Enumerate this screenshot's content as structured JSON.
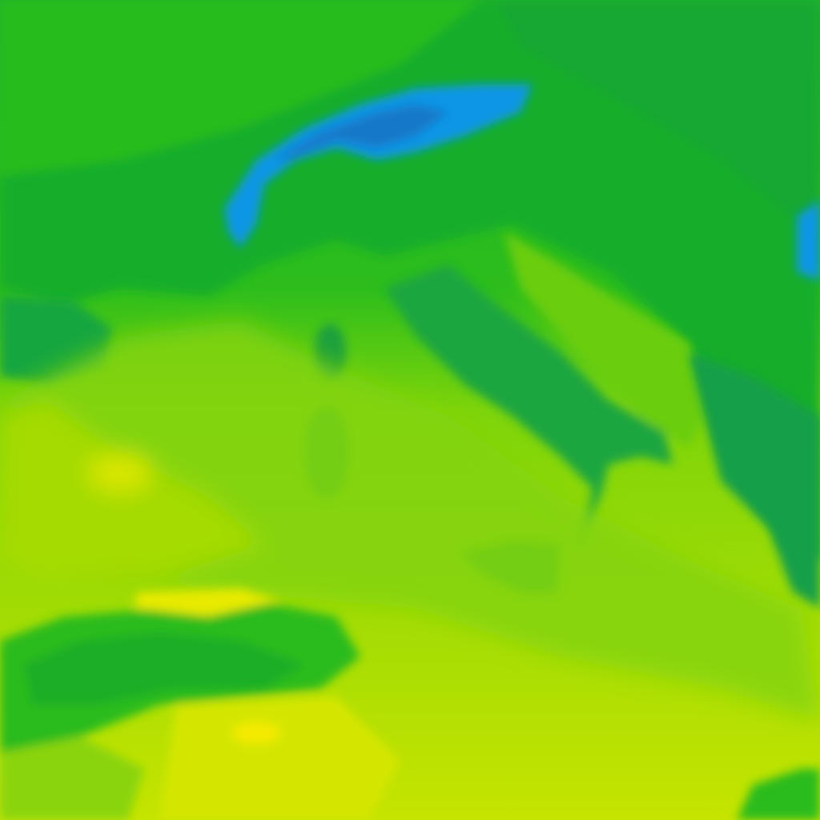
{
  "map": {
    "type": "temperature-field",
    "palette": {
      "cold_blue": "#0a96e6",
      "deep_blue": "#1478c8",
      "mountain_teal": "#16a05a",
      "dark_green": "#18ab2c",
      "green": "#2ebf18",
      "mid_green": "#5acb10",
      "light_green": "#86d608",
      "yellow_green": "#b4e000",
      "yellow": "#e2ea00",
      "bright_yellow": "#f2ea00"
    }
  }
}
